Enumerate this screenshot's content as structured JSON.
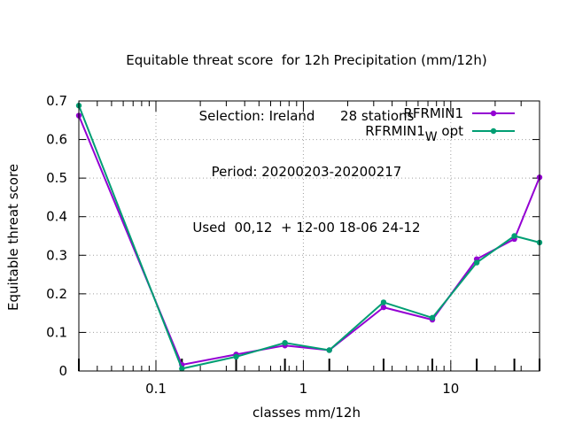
{
  "chart_data": {
    "type": "line",
    "title_lines": [
      "Equitable threat score  for 12h Precipitation (mm/12h)",
      "Selection: Ireland      28 stations",
      "Period: 20200203-20200217",
      "Used  00,12  + 12-00 18-06 24-12"
    ],
    "xlabel": "classes mm/12h",
    "ylabel": "Equitable threat score",
    "xscale": "log",
    "xlim": [
      0.03,
      40
    ],
    "ylim": [
      0,
      0.7
    ],
    "x_ticks": [
      0.1,
      1,
      10
    ],
    "x_tick_labels": [
      "0.1",
      "1",
      "10"
    ],
    "y_ticks": [
      0,
      0.1,
      0.2,
      0.3,
      0.4,
      0.5,
      0.6,
      0.7
    ],
    "y_tick_labels": [
      "0",
      "0.1",
      "0.2",
      "0.3",
      "0.4",
      "0.5",
      "0.6",
      "0.7"
    ],
    "grid": true,
    "legend_position": "top-right",
    "x": [
      0.03,
      0.15,
      0.35,
      0.75,
      1.5,
      3.5,
      7.5,
      15,
      27,
      40
    ],
    "series": [
      {
        "name": "RFRMIN1",
        "name_sub": "",
        "name_suffix": "",
        "color": "#9400d3",
        "values": [
          0.662,
          0.016,
          0.043,
          0.066,
          0.054,
          0.165,
          0.133,
          0.29,
          0.342,
          0.502
        ]
      },
      {
        "name": "RFRMIN1",
        "name_sub": "W",
        "name_suffix": "opt",
        "color": "#009e73",
        "values": [
          0.688,
          0.006,
          0.037,
          0.073,
          0.054,
          0.178,
          0.138,
          0.281,
          0.35,
          0.333
        ]
      }
    ]
  }
}
